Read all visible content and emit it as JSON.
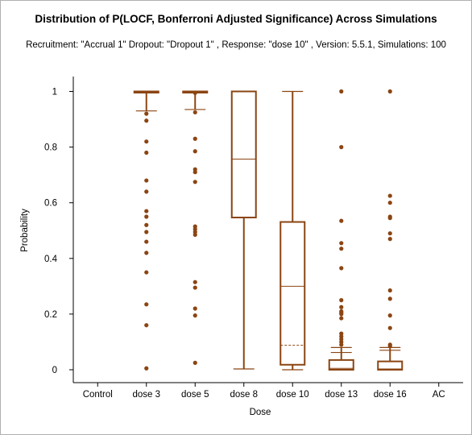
{
  "chart_data": {
    "type": "box",
    "title": "Distribution of P(LOCF, Bonferroni Adjusted Significance) Across Simulations",
    "subtitle": "Recruitment: \"Accrual 1\" Dropout: \"Dropout 1\" , Response: \"dose 10\" , Version: 5.5.1, Simulations: 100",
    "xlabel": "Dose",
    "ylabel": "Probability",
    "ylim": [
      0,
      1
    ],
    "yticks": [
      "0",
      "0.2",
      "0.4",
      "0.6",
      "0.8",
      "1"
    ],
    "categories": [
      "Control",
      "dose 3",
      "dose 5",
      "dose 8",
      "dose 10",
      "dose 13",
      "dose 16",
      "AC"
    ],
    "color": "#8b4513",
    "boxes": [
      null,
      {
        "whisker_low": 0.93,
        "q1": 1.0,
        "median": 1.0,
        "q3": 1.0,
        "whisker_high": 1.0,
        "outliers": [
          0.92,
          0.895,
          0.82,
          0.78,
          0.68,
          0.64,
          0.57,
          0.55,
          0.52,
          0.495,
          0.46,
          0.42,
          0.35,
          0.235,
          0.16,
          0.005
        ]
      },
      {
        "whisker_low": 0.935,
        "q1": 1.0,
        "median": 1.0,
        "q3": 1.0,
        "whisker_high": 1.0,
        "outliers": [
          0.995,
          0.925,
          0.83,
          0.785,
          0.72,
          0.71,
          0.675,
          0.515,
          0.505,
          0.495,
          0.485,
          0.315,
          0.295,
          0.22,
          0.195,
          0.025
        ]
      },
      {
        "whisker_low": 0.003,
        "q1": 0.547,
        "median": 0.757,
        "q3": 1.0,
        "whisker_high": 1.0,
        "outliers": []
      },
      {
        "whisker_low": 0.0,
        "q1": 0.018,
        "median": 0.3,
        "q3": 0.531,
        "whisker_high": 1.0,
        "mean": 0.088,
        "outliers": []
      },
      {
        "whisker_low": 0.0,
        "q1": 0.0,
        "median": 0.005,
        "q3": 0.035,
        "whisker_high": 0.08,
        "lower_bar": 0.062,
        "outliers": [
          1.0,
          0.8,
          0.535,
          0.455,
          0.435,
          0.365,
          0.25,
          0.225,
          0.21,
          0.205,
          0.2,
          0.185,
          0.13,
          0.12,
          0.11,
          0.1,
          0.09
        ]
      },
      {
        "whisker_low": 0.0,
        "q1": 0.0,
        "median": 0.003,
        "q3": 0.03,
        "whisker_high": 0.08,
        "lower_bar": 0.07,
        "outliers": [
          1.0,
          0.625,
          0.6,
          0.55,
          0.545,
          0.49,
          0.47,
          0.285,
          0.255,
          0.195,
          0.15,
          0.09,
          0.085
        ]
      },
      null
    ]
  }
}
